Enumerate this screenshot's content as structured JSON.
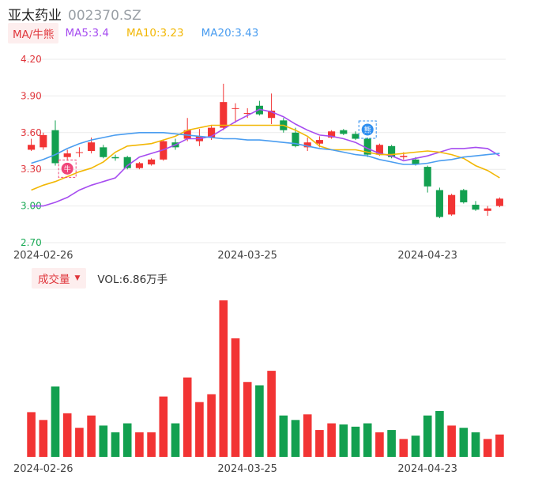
{
  "header": {
    "name": "亚太药业",
    "code": "002370.SZ"
  },
  "ma_legend": {
    "toggle_label": "MA/牛熊",
    "items": [
      {
        "label": "MA5:3.4",
        "color": "#a64cf0"
      },
      {
        "label": "MA10:3.23",
        "color": "#f2b705"
      },
      {
        "label": "MA20:3.43",
        "color": "#4a9df0"
      }
    ]
  },
  "volume_header": {
    "toggle_label": "成交量",
    "value_label": "VOL:6.86万手"
  },
  "colors": {
    "up": "#f23434",
    "down": "#13a050",
    "grid": "#ebebeb"
  },
  "badges": {
    "bull": "牛",
    "bear": "熊"
  },
  "chart_data": {
    "type": "candlestick",
    "price_axis": {
      "ticks": [
        "4.20",
        "3.90",
        "3.60",
        "3.30",
        "3.00",
        "2.70"
      ],
      "ylim": [
        2.7,
        4.2
      ]
    },
    "x_tick_labels": [
      {
        "index": 1,
        "label": "2024-02-26"
      },
      {
        "index": 18,
        "label": "2024-03-25"
      },
      {
        "index": 33,
        "label": "2024-04-23"
      }
    ],
    "candles": [
      {
        "o": 3.46,
        "c": 3.5,
        "h": 3.55,
        "l": 3.45
      },
      {
        "o": 3.48,
        "c": 3.58,
        "h": 3.6,
        "l": 3.46
      },
      {
        "o": 3.62,
        "c": 3.35,
        "h": 3.7,
        "l": 3.33
      },
      {
        "o": 3.4,
        "c": 3.43,
        "h": 3.46,
        "l": 3.37
      },
      {
        "o": 3.44,
        "c": 3.44,
        "h": 3.48,
        "l": 3.4
      },
      {
        "o": 3.45,
        "c": 3.52,
        "h": 3.56,
        "l": 3.43
      },
      {
        "o": 3.48,
        "c": 3.4,
        "h": 3.5,
        "l": 3.39
      },
      {
        "o": 3.4,
        "c": 3.39,
        "h": 3.42,
        "l": 3.37
      },
      {
        "o": 3.4,
        "c": 3.31,
        "h": 3.41,
        "l": 3.3
      },
      {
        "o": 3.31,
        "c": 3.35,
        "h": 3.36,
        "l": 3.3
      },
      {
        "o": 3.34,
        "c": 3.38,
        "h": 3.39,
        "l": 3.33
      },
      {
        "o": 3.38,
        "c": 3.53,
        "h": 3.54,
        "l": 3.37
      },
      {
        "o": 3.52,
        "c": 3.48,
        "h": 3.55,
        "l": 3.46
      },
      {
        "o": 3.55,
        "c": 3.62,
        "h": 3.72,
        "l": 3.53
      },
      {
        "o": 3.53,
        "c": 3.57,
        "h": 3.63,
        "l": 3.49
      },
      {
        "o": 3.56,
        "c": 3.64,
        "h": 3.66,
        "l": 3.54
      },
      {
        "o": 3.64,
        "c": 3.85,
        "h": 4.0,
        "l": 3.62
      },
      {
        "o": 3.8,
        "c": 3.8,
        "h": 3.84,
        "l": 3.68
      },
      {
        "o": 3.76,
        "c": 3.76,
        "h": 3.8,
        "l": 3.72
      },
      {
        "o": 3.82,
        "c": 3.75,
        "h": 3.86,
        "l": 3.74
      },
      {
        "o": 3.72,
        "c": 3.78,
        "h": 3.92,
        "l": 3.67
      },
      {
        "o": 3.7,
        "c": 3.62,
        "h": 3.72,
        "l": 3.6
      },
      {
        "o": 3.6,
        "c": 3.49,
        "h": 3.64,
        "l": 3.48
      },
      {
        "o": 3.48,
        "c": 3.52,
        "h": 3.56,
        "l": 3.45
      },
      {
        "o": 3.51,
        "c": 3.54,
        "h": 3.57,
        "l": 3.48
      },
      {
        "o": 3.56,
        "c": 3.61,
        "h": 3.62,
        "l": 3.55
      },
      {
        "o": 3.62,
        "c": 3.59,
        "h": 3.63,
        "l": 3.58
      },
      {
        "o": 3.59,
        "c": 3.55,
        "h": 3.61,
        "l": 3.54
      },
      {
        "o": 3.55,
        "c": 3.42,
        "h": 3.56,
        "l": 3.4
      },
      {
        "o": 3.42,
        "c": 3.5,
        "h": 3.51,
        "l": 3.41
      },
      {
        "o": 3.49,
        "c": 3.4,
        "h": 3.5,
        "l": 3.39
      },
      {
        "o": 3.4,
        "c": 3.41,
        "h": 3.44,
        "l": 3.38
      },
      {
        "o": 3.38,
        "c": 3.34,
        "h": 3.4,
        "l": 3.33
      },
      {
        "o": 3.32,
        "c": 3.16,
        "h": 3.33,
        "l": 3.11
      },
      {
        "o": 3.13,
        "c": 2.91,
        "h": 3.15,
        "l": 2.9
      },
      {
        "o": 2.93,
        "c": 3.09,
        "h": 3.1,
        "l": 2.92
      },
      {
        "o": 3.13,
        "c": 3.03,
        "h": 3.14,
        "l": 3.02
      },
      {
        "o": 3.01,
        "c": 2.97,
        "h": 3.04,
        "l": 2.96
      },
      {
        "o": 2.96,
        "c": 2.98,
        "h": 3.0,
        "l": 2.92
      },
      {
        "o": 3.0,
        "c": 3.06,
        "h": 3.07,
        "l": 2.99
      }
    ],
    "ma5": [
      3.0,
      3.0,
      3.03,
      3.07,
      3.13,
      3.17,
      3.2,
      3.23,
      3.33,
      3.4,
      3.43,
      3.46,
      3.5,
      3.55,
      3.55,
      3.57,
      3.63,
      3.69,
      3.74,
      3.79,
      3.77,
      3.73,
      3.67,
      3.62,
      3.58,
      3.57,
      3.55,
      3.52,
      3.47,
      3.43,
      3.41,
      3.37,
      3.39,
      3.41,
      3.44,
      3.47,
      3.47,
      3.48,
      3.47,
      3.41
    ],
    "ma10": [
      3.13,
      3.17,
      3.2,
      3.24,
      3.28,
      3.31,
      3.36,
      3.44,
      3.49,
      3.5,
      3.51,
      3.54,
      3.57,
      3.62,
      3.64,
      3.66,
      3.66,
      3.66,
      3.66,
      3.66,
      3.66,
      3.66,
      3.62,
      3.57,
      3.49,
      3.46,
      3.46,
      3.46,
      3.44,
      3.42,
      3.42,
      3.43,
      3.44,
      3.45,
      3.44,
      3.42,
      3.39,
      3.33,
      3.29,
      3.23
    ],
    "ma20": [
      3.35,
      3.38,
      3.42,
      3.47,
      3.51,
      3.54,
      3.56,
      3.58,
      3.59,
      3.6,
      3.6,
      3.6,
      3.59,
      3.58,
      3.57,
      3.56,
      3.55,
      3.55,
      3.54,
      3.54,
      3.53,
      3.52,
      3.51,
      3.49,
      3.47,
      3.46,
      3.44,
      3.42,
      3.41,
      3.38,
      3.36,
      3.34,
      3.34,
      3.35,
      3.37,
      3.38,
      3.4,
      3.41,
      3.42,
      3.43
    ],
    "volumes": [
      40,
      33,
      63,
      39,
      26,
      37,
      28,
      22,
      30,
      22,
      22,
      54,
      30,
      71,
      49,
      56,
      140,
      106,
      67,
      64,
      77,
      37,
      33,
      38,
      24,
      30,
      29,
      27,
      30,
      22,
      24,
      16,
      19,
      37,
      41,
      28,
      26,
      22,
      16,
      20
    ],
    "volume_ylim": [
      0,
      140
    ],
    "signals": [
      {
        "index": 3,
        "type": "bull"
      },
      {
        "index": 28,
        "type": "bear"
      }
    ]
  }
}
